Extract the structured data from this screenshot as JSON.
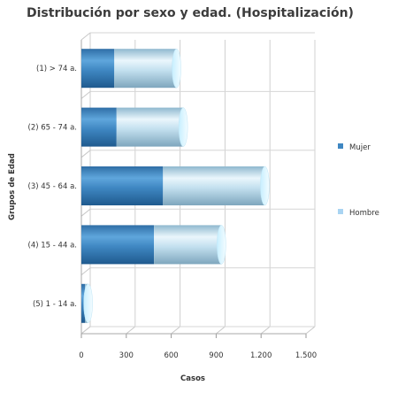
{
  "chart_data": {
    "type": "bar",
    "orientation": "horizontal",
    "stacked": true,
    "style": "3d-cylinder",
    "title": "Distribución por sexo y edad. (Hospitalización)",
    "xlabel": "Casos",
    "ylabel": "Grupos de Edad",
    "categories": [
      "(1) > 74 a.",
      "(2) 65 - 74 a.",
      "(3) 45 - 64 a.",
      "(4) 15 - 44 a.",
      "(5) 1 - 14 a."
    ],
    "x_ticks": [
      "0",
      "300",
      "600",
      "900",
      "1.200",
      "1.500"
    ],
    "xlim": [
      0,
      1500
    ],
    "grid": true,
    "legend_position": "right",
    "series": [
      {
        "name": "Mujer",
        "values": [
          220,
          235,
          545,
          485,
          25
        ],
        "color": "#3f87c2"
      },
      {
        "name": "Hombre",
        "values": [
          415,
          445,
          680,
          450,
          20
        ],
        "color": "#b9d8ea"
      }
    ]
  }
}
